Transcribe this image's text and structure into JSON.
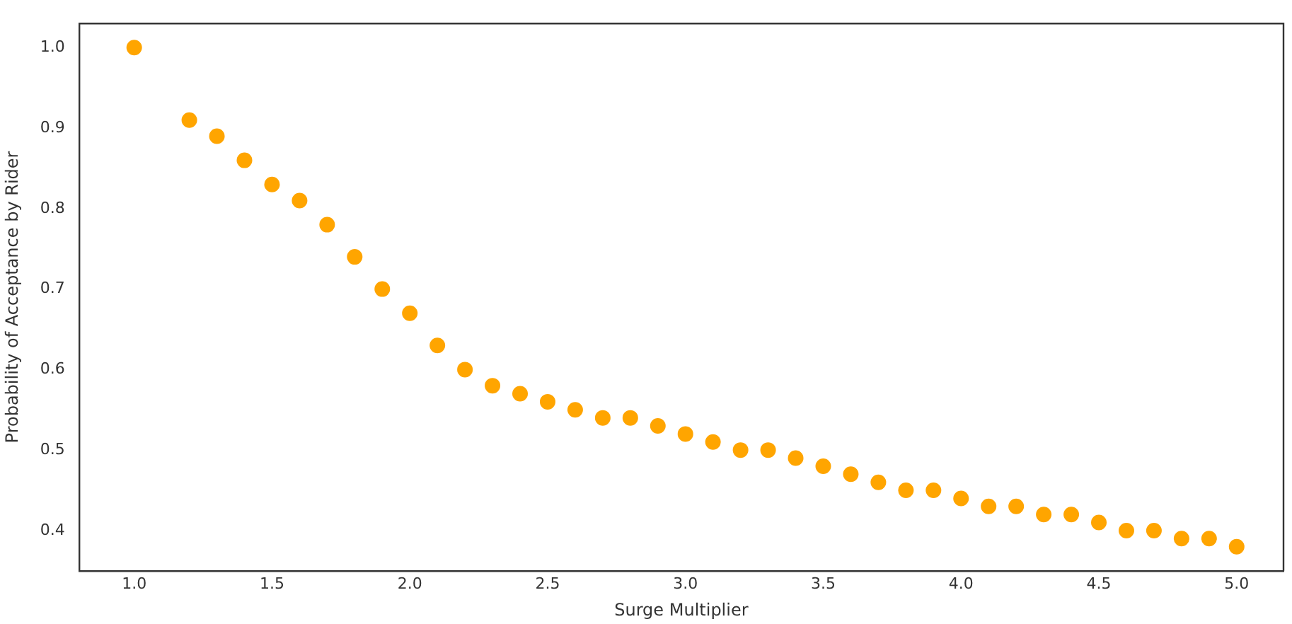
{
  "chart_data": {
    "type": "scatter",
    "xlabel": "Surge Multiplier",
    "ylabel": "Probability of Acceptance by Rider",
    "x": [
      1.0,
      1.2,
      1.3,
      1.4,
      1.5,
      1.6,
      1.7,
      1.8,
      1.9,
      2.0,
      2.1,
      2.2,
      2.3,
      2.4,
      2.5,
      2.6,
      2.7,
      2.8,
      2.9,
      3.0,
      3.1,
      3.2,
      3.3,
      3.4,
      3.5,
      3.6,
      3.7,
      3.8,
      3.9,
      4.0,
      4.1,
      4.2,
      4.3,
      4.4,
      4.5,
      4.6,
      4.7,
      4.8,
      4.9,
      5.0
    ],
    "series": [
      {
        "color": "#ffa500",
        "values": [
          1.0,
          0.91,
          0.89,
          0.86,
          0.83,
          0.81,
          0.78,
          0.74,
          0.7,
          0.67,
          0.63,
          0.6,
          0.58,
          0.57,
          0.56,
          0.55,
          0.54,
          0.54,
          0.53,
          0.52,
          0.51,
          0.5,
          0.5,
          0.49,
          0.48,
          0.47,
          0.46,
          0.45,
          0.45,
          0.44,
          0.43,
          0.43,
          0.42,
          0.42,
          0.41,
          0.4,
          0.4,
          0.39,
          0.39,
          0.38
        ]
      }
    ],
    "xlim": [
      0.8,
      5.17
    ],
    "ylim": [
      0.35,
      1.03
    ],
    "xticks": [
      {
        "value": 1,
        "label": "1.0"
      },
      1.5,
      {
        "value": 2,
        "label": "2.0"
      },
      2.5,
      {
        "value": 3,
        "label": "3.0"
      },
      3.5,
      {
        "value": 4,
        "label": "4.0"
      },
      4.5,
      {
        "value": 5,
        "label": "5.0"
      }
    ],
    "yticks": [
      0.4,
      0.5,
      0.6,
      0.7,
      0.8,
      0.9,
      {
        "value": 1,
        "label": "1.0"
      }
    ],
    "grid": false,
    "legend": false,
    "marker": "circle"
  }
}
